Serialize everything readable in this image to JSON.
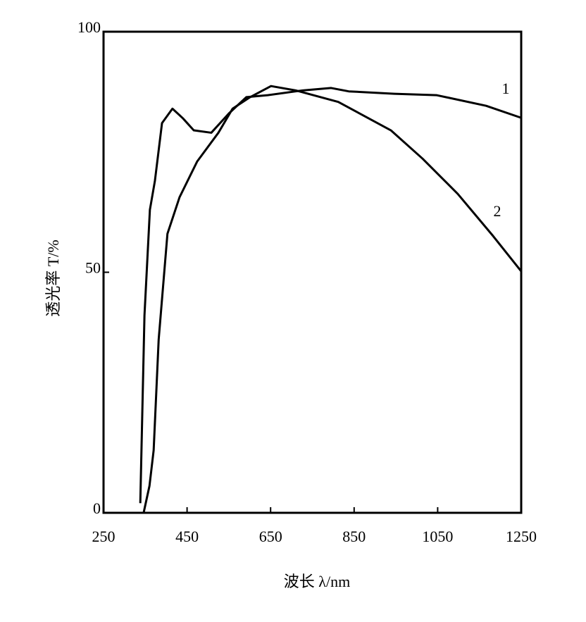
{
  "chart_data": {
    "type": "line",
    "x_label": "波长 λ/nm",
    "y_label": "透光率 T/%",
    "xlim": [
      250,
      1250
    ],
    "xticks": [
      250,
      450,
      650,
      850,
      1050,
      1250
    ],
    "ylim": [
      0,
      100
    ],
    "yticks": [
      0,
      50,
      100
    ],
    "series": [
      {
        "name": "1",
        "color": "#000000",
        "x": [
          338,
          348,
          361,
          373,
          390,
          415,
          440,
          466,
          508,
          550,
          592,
          643,
          727,
          795,
          837,
          946,
          1048,
          1166,
          1250
        ],
        "values": [
          2,
          41,
          63,
          69,
          81,
          84,
          82,
          79.5,
          79,
          83,
          86.4,
          86.8,
          87.8,
          88.3,
          87.6,
          87.1,
          86.8,
          84.6,
          82.1
        ]
      },
      {
        "name": "2",
        "color": "#000000",
        "x": [
          346,
          360,
          370,
          382,
          403,
          432,
          474,
          525,
          559,
          601,
          651,
          710,
          812,
          938,
          1014,
          1098,
          1183,
          1250
        ],
        "values": [
          0,
          5.6,
          13,
          36,
          58,
          65.6,
          73,
          79,
          84,
          86.4,
          88.7,
          87.8,
          85.4,
          79.5,
          73.6,
          66.3,
          57.5,
          50.2
        ]
      }
    ]
  }
}
